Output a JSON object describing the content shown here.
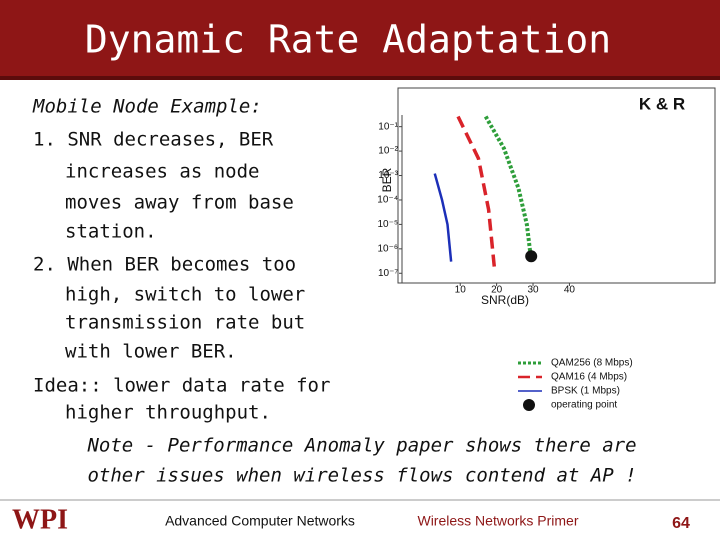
{
  "header": {
    "title": "Dynamic Rate Adaptation"
  },
  "body": {
    "lines": [
      {
        "text": "Mobile Node Example:",
        "indent": false,
        "italic": true
      },
      {
        "text": "1. SNR decreases, BER",
        "indent": false,
        "italic": false
      },
      {
        "text": "increases as node",
        "indent": true,
        "italic": false
      },
      {
        "text": "moves away from base",
        "indent": true,
        "italic": false
      },
      {
        "text": "station.",
        "indent": true,
        "italic": false
      },
      {
        "text": "2. When BER becomes too",
        "indent": false,
        "italic": false
      },
      {
        "text": "high, switch to lower",
        "indent": true,
        "italic": false
      },
      {
        "text": "transmission rate but",
        "indent": true,
        "italic": false
      },
      {
        "text": "with lower BER.",
        "indent": true,
        "italic": false
      },
      {
        "text": "Idea:: lower data rate for",
        "indent": false,
        "italic": false
      },
      {
        "text": "higher throughput.",
        "indent": true,
        "italic": false
      }
    ],
    "note": [
      "Note - Performance Anomaly paper shows there are",
      "other issues when wireless flows contend at AP !"
    ]
  },
  "figure": {
    "type": "line",
    "source": "K & R",
    "y_label": "BER",
    "x_label": "SNR(dB)",
    "log_y": true,
    "xlim": [
      -6,
      80
    ],
    "ylim": [
      4e-08,
      0.3
    ],
    "xticks": [
      10,
      20,
      30,
      40
    ],
    "yticks": [
      {
        "value": 0.1,
        "label": "10⁻¹"
      },
      {
        "value": 0.01,
        "label": "10⁻²"
      },
      {
        "value": 0.001,
        "label": "10⁻³"
      },
      {
        "value": 0.0001,
        "label": "10⁻⁴"
      },
      {
        "value": 1e-05,
        "label": "10⁻⁵"
      },
      {
        "value": 1e-06,
        "label": "10⁻⁶"
      },
      {
        "value": 1e-07,
        "label": "10⁻⁷"
      }
    ],
    "series": [
      {
        "name": "QAM256 (8 Mbps)",
        "color": "#2e9e3a",
        "dash": "dotted",
        "x": [
          17,
          22,
          26,
          28.3,
          29.4
        ],
        "values": [
          0.26,
          0.013,
          0.0003,
          1e-05,
          4.5e-07
        ]
      },
      {
        "name": "QAM16 (4 Mbps)",
        "color": "#d9232a",
        "dash": "dashed",
        "x": [
          9.4,
          15,
          17.8,
          19.4
        ],
        "values": [
          0.26,
          0.005,
          4e-05,
          1.6e-07
        ]
      },
      {
        "name": "BPSK (1 Mbps)",
        "color": "#1c2fb8",
        "dash": "solid",
        "x": [
          3,
          5,
          6.5,
          7.5
        ],
        "values": [
          0.0012,
          0.0001,
          1e-05,
          3e-07
        ]
      }
    ],
    "operating_point": {
      "name": "operating point",
      "x": 29.5,
      "y": 5e-07,
      "color": "#111111"
    }
  },
  "footer": {
    "logo": "WPI",
    "left": "Advanced Computer Networks",
    "center": "Wireless Networks Primer",
    "page": "64"
  }
}
